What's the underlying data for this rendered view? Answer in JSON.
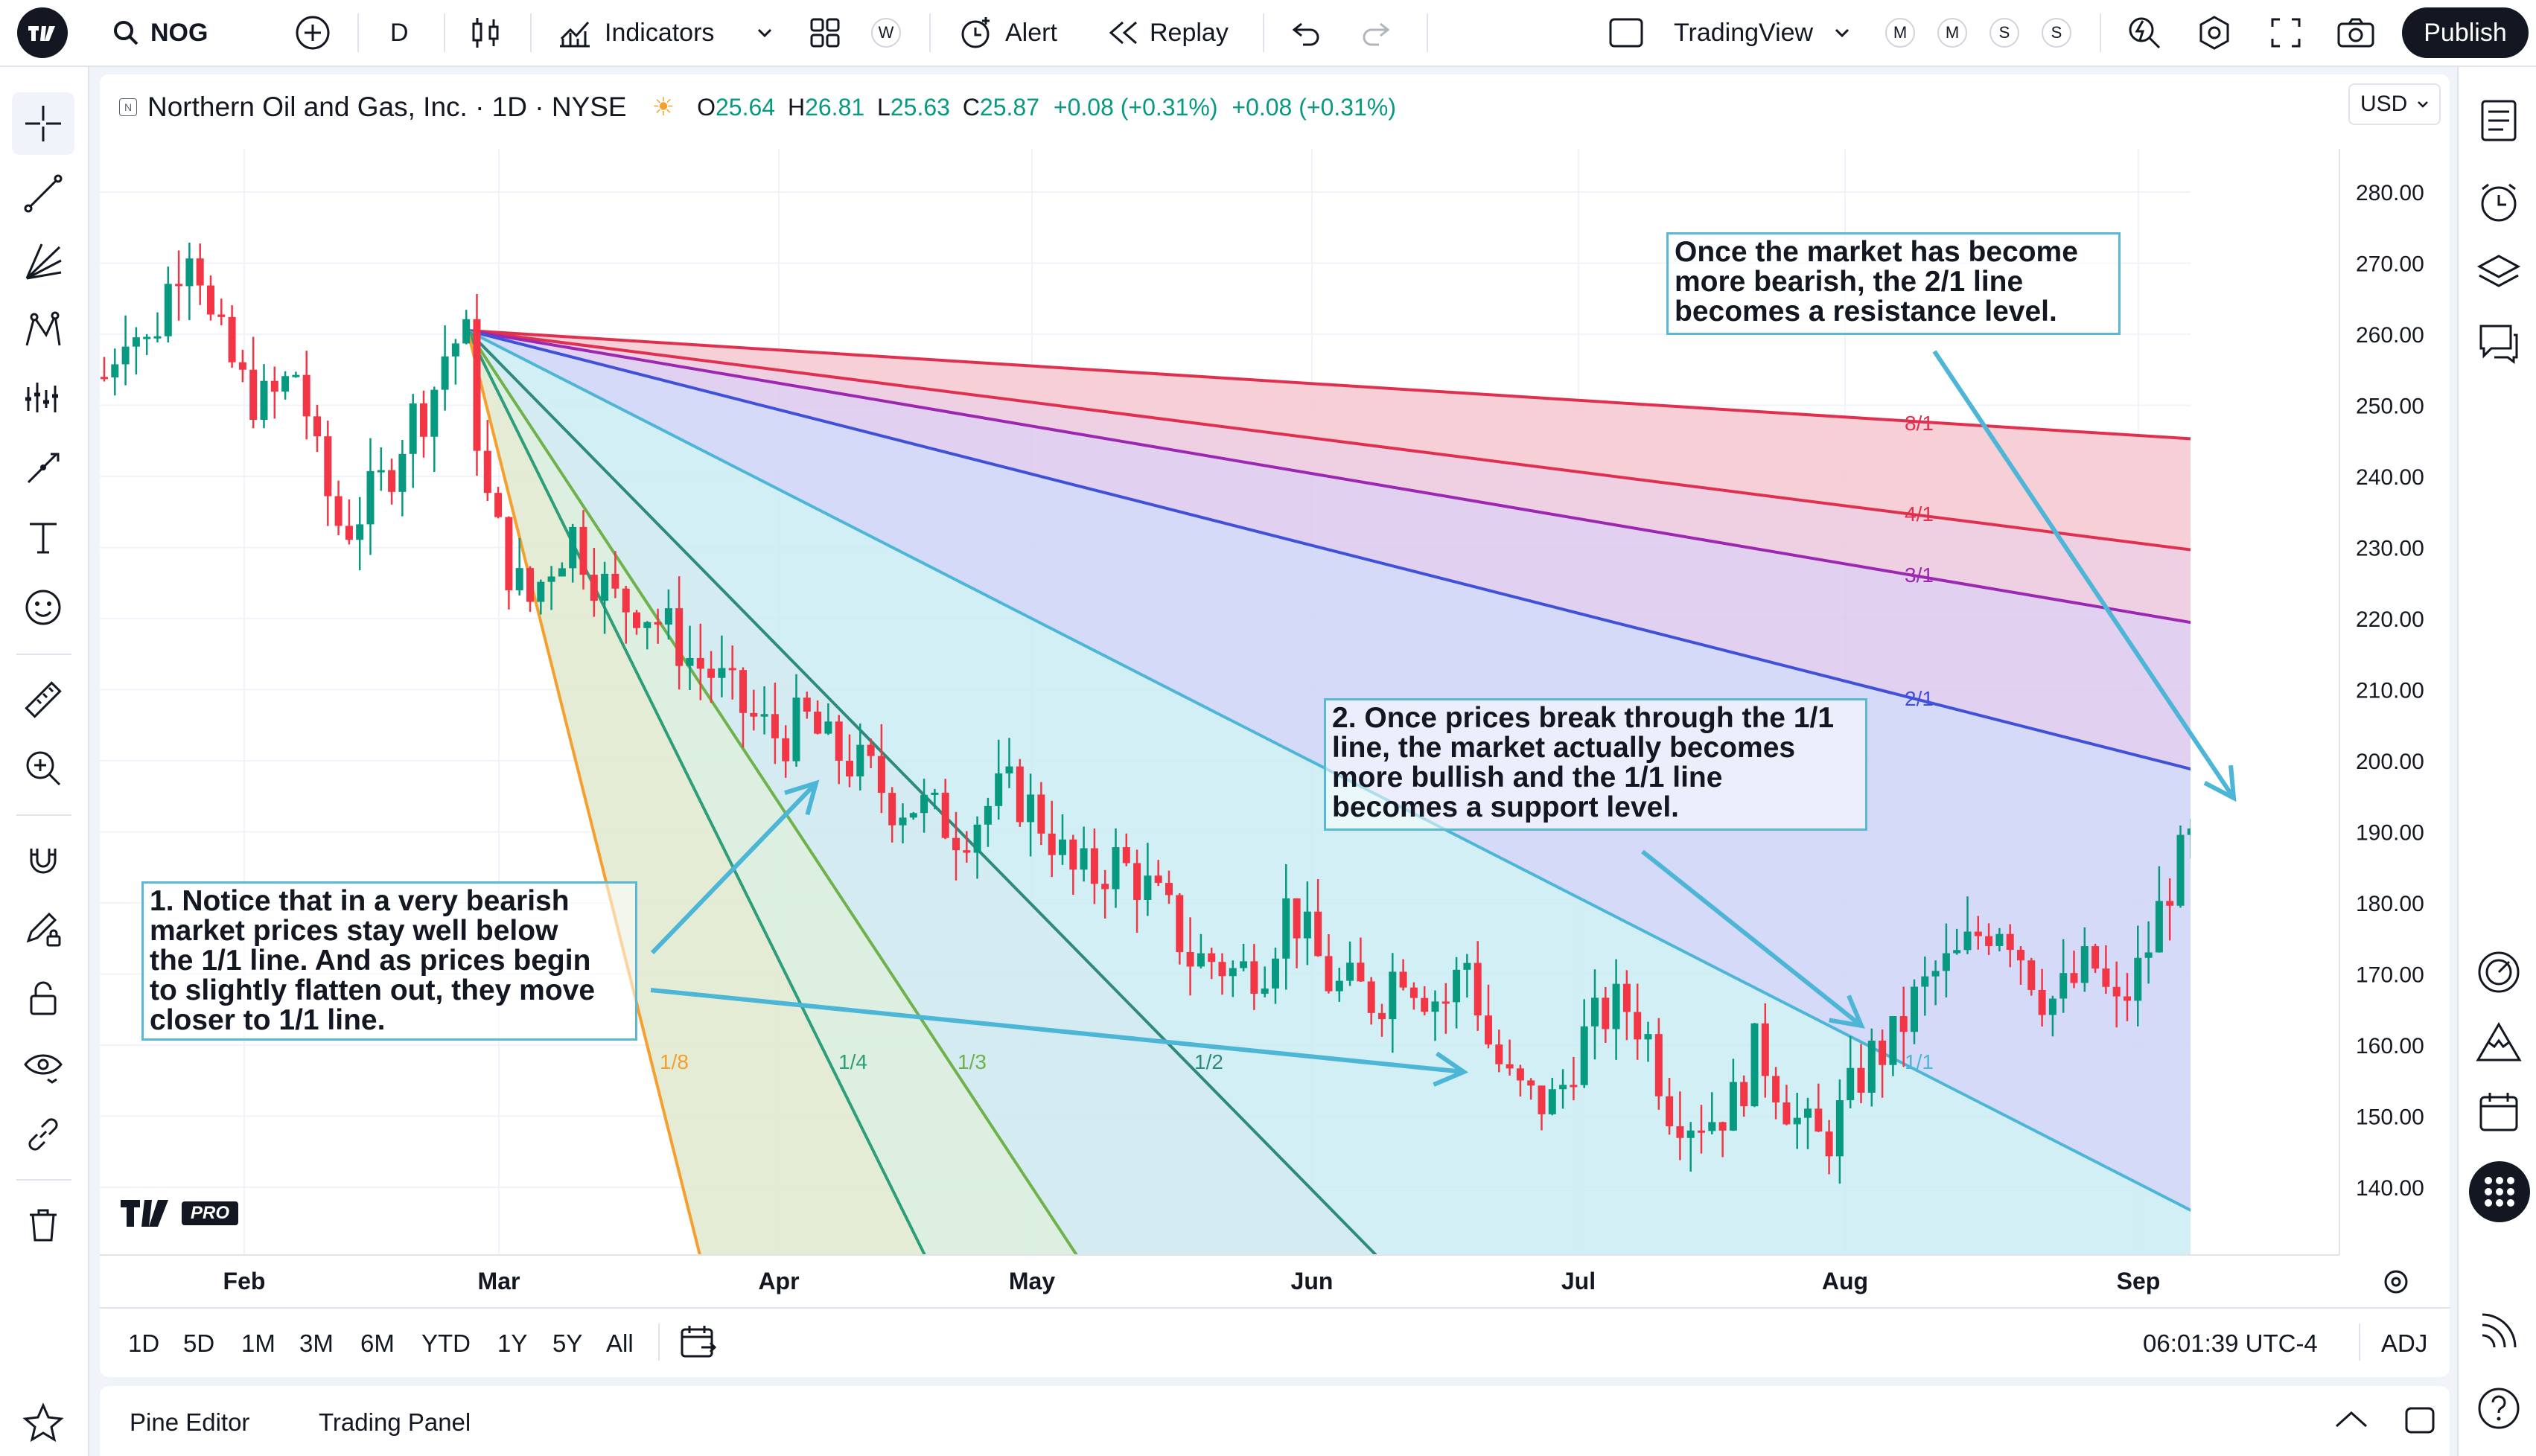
{
  "toolbar": {
    "symbol": "NOG",
    "interval": "D",
    "indicators_label": "Indicators",
    "layouts_badge": "W",
    "alert_label": "Alert",
    "replay_label": "Replay",
    "layout_name": "TradingView",
    "badges": [
      "M",
      "M",
      "S",
      "S"
    ],
    "publish_label": "Publish"
  },
  "legend": {
    "title": "Northern Oil and Gas, Inc. · 1D · NYSE",
    "o_label": "O",
    "o_value": "25.64",
    "h_label": "H",
    "h_value": "26.81",
    "l_label": "L",
    "l_value": "25.63",
    "c_label": "C",
    "c_value": "25.87",
    "change1": "+0.08 (+0.31%)",
    "change2": "+0.08 (+0.31%)"
  },
  "currency": "USD",
  "chart_data": {
    "type": "candlestick",
    "y_axis": [
      "280.00",
      "270.00",
      "260.00",
      "250.00",
      "240.00",
      "230.00",
      "220.00",
      "210.00",
      "200.00",
      "190.00",
      "180.00",
      "170.00",
      "160.00",
      "150.00",
      "140.00"
    ],
    "x_axis": [
      "Feb",
      "Mar",
      "Apr",
      "May",
      "Jun",
      "Jul",
      "Aug",
      "Sep"
    ],
    "fan_labels": [
      "8/1",
      "4/1",
      "3/1",
      "2/1",
      "1/1",
      "1/2",
      "1/3",
      "1/4",
      "1/8"
    ],
    "colors": {
      "up": "#089981",
      "down": "#f23645",
      "fan_1_8": "#f5a02e",
      "fan_1_4": "#2e9e7a",
      "fan_1_3": "#6fb24c",
      "fan_1_2": "#2e8b7a",
      "fan_1_1": "#4db6d6",
      "fan_2_1": "#3f51d8",
      "fan_3_1": "#9c27b0",
      "fan_4_1": "#e0304f",
      "fan_8_1": "#e0304f",
      "arrow": "#4db6d6"
    }
  },
  "annotations": {
    "a1": [
      "1. Notice that in a very bearish",
      "market prices stay well below",
      "the 1/1 line. And as prices begin",
      "to slightly flatten out, they move",
      "closer to 1/1 line."
    ],
    "a2": [
      "2. Once prices break through the 1/1",
      "line, the market actually becomes",
      "more bullish and the 1/1 line",
      "becomes a support level."
    ],
    "a3": [
      "Once the market has become",
      "more bearish, the 2/1 line",
      "becomes a resistance level."
    ]
  },
  "watermark": {
    "pro": "PRO"
  },
  "ranges": [
    "1D",
    "5D",
    "1M",
    "3M",
    "6M",
    "YTD",
    "1Y",
    "5Y",
    "All"
  ],
  "clock": "06:01:39 UTC-4",
  "adj": "ADJ",
  "panels": {
    "pine": "Pine Editor",
    "trading": "Trading Panel"
  }
}
